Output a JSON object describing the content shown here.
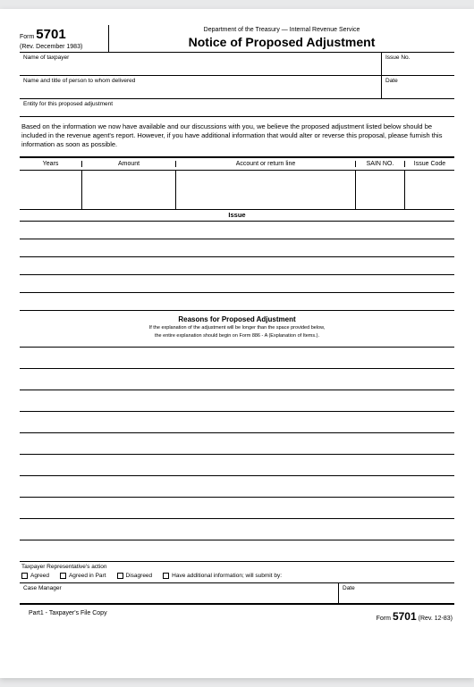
{
  "header": {
    "form_word": "Form",
    "form_number": "5701",
    "rev_date": "(Rev. December 1983)",
    "dept": "Department of the Treasury — Internal Revenue Service",
    "title": "Notice of Proposed Adjustment"
  },
  "row_taxpayer": {
    "name_label": "Name of taxpayer",
    "issue_label": "Issue No."
  },
  "row_delivered": {
    "label": "Name and title of person to whom delivered",
    "date_label": "Date"
  },
  "row_entity": {
    "label": "Entity for this proposed adjustment"
  },
  "intro": "Based on the information we now have available and our discussions with you, we believe the proposed adjustment listed below should be included in the revenue agent's report. However, if you have additional information that would alter or reverse this proposal, please furnish this information as soon as possible.",
  "table": {
    "col_years": "Years",
    "col_amount": "Amount",
    "col_account": "Account or return line",
    "col_sain": "SAIN NO.",
    "col_issue": "Issue Code"
  },
  "issue_label": "Issue",
  "reasons": {
    "title": "Reasons for Proposed Adjustment",
    "sub1": "If the explanation of the adjustment will be longer than the space provided below,",
    "sub2": "the entire explanation should begin on Form 886 - A (Explanation of Items.)."
  },
  "actions": {
    "label": "Taxpayer Representative's action",
    "agreed": "Agreed",
    "agreed_part": "Agreed in Part",
    "disagreed": "Disagreed",
    "additional": "Have additional information; will submit by:"
  },
  "manager": {
    "label": "Case Manager",
    "date_label": "Date"
  },
  "footer": {
    "left": "Part1 - Taxpayer's File Copy",
    "right_form": "Form",
    "right_number": "5701",
    "right_rev": "(Rev. 12-83)"
  }
}
